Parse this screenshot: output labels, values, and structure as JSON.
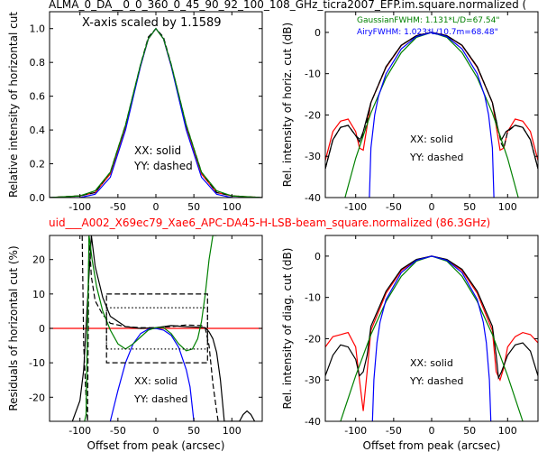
{
  "top_title": "ALMA_0_DA__0_0_360_0_45_90_92_100_108_GHz_ticra2007_EFP.im.square.normalized (",
  "mid_title": "uid___A002_X69ec79_Xae6_APC-DA45-H-LSB-beam_square.normalized (86.3GHz)",
  "colors": {
    "black": "#000000",
    "blue": "#0000ff",
    "green": "#008000",
    "red": "#ff0000"
  },
  "chart_data": [
    {
      "id": "p1",
      "type": "line",
      "xlim": [
        -140,
        140
      ],
      "ylim": [
        0,
        1.1
      ],
      "xticks": [
        -100,
        -50,
        0,
        50,
        100
      ],
      "yticks": [
        0.0,
        0.2,
        0.4,
        0.6,
        0.8,
        1.0
      ],
      "xtick_labels": [
        "-100",
        "-50",
        "0",
        "50",
        "100"
      ],
      "ytick_labels": [
        "0.0",
        "0.2",
        "0.4",
        "0.6",
        "0.8",
        "1.0"
      ],
      "xlabel": "",
      "ylabel": "Relative intensity of horizontal cut",
      "annotations": [
        "X-axis scaled by 1.1589",
        "XX: solid",
        "YY: dashed"
      ],
      "series": [
        {
          "color": "red",
          "style": "solid",
          "x": [
            -140,
            -120,
            -100,
            -80,
            -60,
            -40,
            -30,
            -20,
            -10,
            0,
            10,
            20,
            30,
            40,
            60,
            80,
            100,
            120,
            140
          ],
          "y": [
            0.0,
            0.005,
            0.01,
            0.03,
            0.14,
            0.42,
            0.6,
            0.78,
            0.94,
            1.0,
            0.94,
            0.78,
            0.6,
            0.42,
            0.14,
            0.03,
            0.01,
            0.005,
            0.0
          ]
        },
        {
          "color": "black",
          "style": "dashed",
          "x": [
            -140,
            -120,
            -100,
            -80,
            -60,
            -40,
            -30,
            -20,
            -10,
            0,
            10,
            20,
            30,
            40,
            60,
            80,
            100,
            120,
            140
          ],
          "y": [
            0.0,
            0.005,
            0.01,
            0.03,
            0.15,
            0.43,
            0.61,
            0.79,
            0.95,
            1.0,
            0.95,
            0.79,
            0.61,
            0.43,
            0.15,
            0.03,
            0.01,
            0.005,
            0.0
          ]
        },
        {
          "color": "blue",
          "style": "solid",
          "x": [
            -140,
            -100,
            -80,
            -60,
            -40,
            -30,
            -20,
            -10,
            0,
            10,
            20,
            30,
            40,
            60,
            80,
            100,
            140
          ],
          "y": [
            0.0,
            0.0,
            0.02,
            0.12,
            0.4,
            0.59,
            0.78,
            0.94,
            1.0,
            0.94,
            0.78,
            0.59,
            0.4,
            0.12,
            0.02,
            0.0,
            0.0
          ]
        },
        {
          "color": "green",
          "style": "solid",
          "x": [
            -140,
            -100,
            -80,
            -60,
            -40,
            -30,
            -20,
            -10,
            0,
            10,
            20,
            30,
            40,
            60,
            80,
            100,
            140
          ],
          "y": [
            0.0,
            0.01,
            0.04,
            0.15,
            0.43,
            0.61,
            0.79,
            0.94,
            1.0,
            0.94,
            0.79,
            0.61,
            0.43,
            0.15,
            0.04,
            0.01,
            0.0
          ]
        }
      ]
    },
    {
      "id": "p2",
      "type": "line",
      "xlim": [
        -140,
        140
      ],
      "ylim": [
        -40,
        5
      ],
      "xticks": [
        -100,
        -50,
        0,
        50,
        100
      ],
      "yticks": [
        -40,
        -30,
        -20,
        -10,
        0
      ],
      "xtick_labels": [
        "-100",
        "-50",
        "0",
        "50",
        "100"
      ],
      "ytick_labels": [
        "-40",
        "-30",
        "-20",
        "-10",
        "0"
      ],
      "xlabel": "",
      "ylabel": "Rel. intensity of horiz. cut (dB)",
      "annotations": [
        "GaussianFWHM: 1.131*L/D=67.54\"",
        "AiryFWHM: 1.023*L/10.7m=68.48\"",
        "XX: solid",
        "YY: dashed"
      ],
      "series": [
        {
          "color": "red",
          "style": "solid",
          "x": [
            -140,
            -130,
            -120,
            -110,
            -100,
            -95,
            -90,
            -80,
            -60,
            -40,
            -20,
            0,
            20,
            40,
            60,
            80,
            90,
            95,
            100,
            110,
            120,
            130,
            140
          ],
          "y": [
            -31,
            -24,
            -21.5,
            -21,
            -24,
            -28,
            -28.5,
            -17,
            -8.5,
            -3.2,
            -0.8,
            0,
            -0.8,
            -3.2,
            -8.5,
            -17,
            -28.5,
            -28,
            -24,
            -21,
            -21.5,
            -24,
            -31
          ]
        },
        {
          "color": "black",
          "style": "solid",
          "x": [
            -140,
            -130,
            -120,
            -110,
            -100,
            -95,
            -90,
            -80,
            -60,
            -40,
            -20,
            0,
            20,
            40,
            60,
            80,
            88,
            92,
            98,
            110,
            120,
            130,
            140
          ],
          "y": [
            -33,
            -26,
            -23,
            -22.5,
            -25,
            -26.5,
            -24,
            -17,
            -8.3,
            -3.1,
            -0.8,
            0,
            -0.8,
            -3.1,
            -8.3,
            -17,
            -24,
            -26,
            -24,
            -22.5,
            -23,
            -26,
            -33
          ]
        },
        {
          "color": "black",
          "style": "dashed",
          "x": [
            -140,
            -130,
            -120,
            -110,
            -100,
            -94,
            -88,
            -80,
            -60,
            -40,
            -20,
            0,
            20,
            40,
            60,
            80,
            88,
            92,
            95,
            100,
            110,
            120,
            130,
            140
          ],
          "y": [
            -33,
            -26,
            -23,
            -22.5,
            -25,
            -26,
            -24,
            -17,
            -8.3,
            -3.1,
            -0.8,
            0,
            -0.8,
            -3.1,
            -8.3,
            -17,
            -24,
            -27,
            -28,
            -24,
            -22.5,
            -23,
            -26,
            -33
          ]
        },
        {
          "color": "green",
          "style": "solid",
          "x": [
            -140,
            -120,
            -100,
            -80,
            -60,
            -40,
            -20,
            0,
            20,
            40,
            60,
            80,
            100,
            120,
            140
          ],
          "y": [
            -60,
            -44,
            -30.5,
            -19.5,
            -11,
            -4.9,
            -1.2,
            0,
            -1.2,
            -4.9,
            -11,
            -19.5,
            -30.5,
            -44,
            -60
          ]
        },
        {
          "color": "blue",
          "style": "solid",
          "x": [
            -82,
            -80,
            -75,
            -70,
            -60,
            -40,
            -20,
            0,
            20,
            40,
            60,
            70,
            75,
            80,
            82
          ],
          "y": [
            -40,
            -28,
            -20,
            -15.5,
            -10,
            -4,
            -1,
            0,
            -1,
            -4,
            -10,
            -15.5,
            -20,
            -28,
            -40
          ]
        }
      ]
    },
    {
      "id": "p3",
      "type": "line",
      "xlim": [
        -140,
        140
      ],
      "ylim": [
        -27,
        27
      ],
      "xticks": [
        -100,
        -50,
        0,
        50,
        100
      ],
      "yticks": [
        -20,
        -10,
        0,
        10,
        20
      ],
      "xtick_labels": [
        "-100",
        "-50",
        "0",
        "50",
        "100"
      ],
      "ytick_labels": [
        "-20",
        "-10",
        "0",
        "10",
        "20"
      ],
      "xlabel": "Offset from peak (arcsec)",
      "ylabel": "Residuals of horizontal cut (%)",
      "annotations": [
        "XX: solid",
        "YY: dashed"
      ],
      "series": [
        {
          "color": "red",
          "style": "solid",
          "x": [
            -140,
            140
          ],
          "y": [
            0,
            0
          ]
        },
        {
          "color": "black",
          "style": "solid",
          "x": [
            -110,
            -100,
            -95,
            -90,
            -85,
            -80,
            -70,
            -60,
            -40,
            -20,
            0,
            20,
            40,
            60,
            65,
            70,
            75,
            80,
            85,
            90,
            100,
            110,
            115,
            120,
            125,
            130
          ],
          "y": [
            -27,
            -21,
            -12,
            8,
            27,
            18,
            9,
            3.5,
            0.5,
            0,
            0.2,
            0.8,
            0.5,
            0.3,
            0.2,
            -1,
            -3,
            -7,
            -15,
            -27,
            -27,
            -27,
            -25,
            -24,
            -25,
            -27
          ]
        },
        {
          "color": "black",
          "style": "dashed",
          "x": [
            -97,
            -95,
            -92,
            -90,
            -88,
            -85,
            -80,
            -70,
            -60,
            -40,
            -20,
            0,
            20,
            40,
            60,
            65,
            70,
            75,
            80,
            82,
            85
          ],
          "y": [
            27,
            -5,
            -20,
            -27,
            27,
            15,
            8,
            4,
            1.5,
            0.5,
            0.2,
            0.2,
            0.5,
            1.0,
            0.8,
            0,
            -5,
            -16,
            -24,
            -27,
            -27
          ]
        },
        {
          "color": "blue",
          "style": "solid",
          "x": [
            -60,
            -50,
            -40,
            -30,
            -20,
            -10,
            0,
            10,
            20,
            30,
            40,
            45,
            50
          ],
          "y": [
            -27,
            -18,
            -10,
            -4.5,
            -1.5,
            -0.2,
            0,
            -0.5,
            -2,
            -5.5,
            -12,
            -17,
            -27
          ]
        },
        {
          "color": "green",
          "style": "solid",
          "x": [
            -94,
            -92,
            -88,
            -84,
            -78,
            -70,
            -60,
            -50,
            -40,
            -30,
            -20,
            -10,
            0,
            10,
            20,
            30,
            40,
            48,
            55,
            60,
            65,
            70,
            75,
            80
          ],
          "y": [
            -27,
            -25,
            27,
            20,
            12,
            5,
            -0.5,
            -4.5,
            -6,
            -4.5,
            -2.5,
            -0.5,
            0.2,
            0.2,
            -1.5,
            -4.5,
            -6.5,
            -6,
            -3,
            2,
            10,
            20,
            27,
            27
          ]
        },
        {
          "color": "black",
          "style": "dashed",
          "x": [
            -65,
            68,
            68,
            -65,
            -65
          ],
          "y": [
            10,
            10,
            -10,
            -10,
            10
          ]
        },
        {
          "color": "black",
          "style": "dotted",
          "x": [
            -65,
            68,
            68,
            -65,
            -65
          ],
          "y": [
            6,
            6,
            -6,
            -6,
            6
          ]
        }
      ]
    },
    {
      "id": "p4",
      "type": "line",
      "xlim": [
        -140,
        140
      ],
      "ylim": [
        -40,
        5
      ],
      "xticks": [
        -100,
        -50,
        0,
        50,
        100
      ],
      "yticks": [
        -40,
        -30,
        -20,
        -10,
        0
      ],
      "xtick_labels": [
        "-100",
        "-50",
        "0",
        "50",
        "100"
      ],
      "ytick_labels": [
        "-40",
        "-30",
        "-20",
        "-10",
        "0"
      ],
      "xlabel": "Offset from peak (arcsec)",
      "ylabel": "Rel. intensity of diag. cut (dB)",
      "annotations": [
        "XX: solid",
        "YY: dashed"
      ],
      "series": [
        {
          "color": "red",
          "style": "solid",
          "x": [
            -140,
            -130,
            -120,
            -110,
            -100,
            -95,
            -90,
            -85,
            -80,
            -60,
            -40,
            -20,
            0,
            20,
            40,
            60,
            80,
            85,
            90,
            95,
            100,
            110,
            120,
            130,
            140
          ],
          "y": [
            -22,
            -19.5,
            -19,
            -18.5,
            -22,
            -30,
            -37.5,
            -28,
            -18,
            -9,
            -3.5,
            -0.9,
            0,
            -0.9,
            -3.5,
            -9,
            -18,
            -28,
            -30,
            -27,
            -22,
            -19.5,
            -18.5,
            -19,
            -21
          ]
        },
        {
          "color": "black",
          "style": "solid",
          "x": [
            -140,
            -130,
            -120,
            -110,
            -100,
            -95,
            -90,
            -85,
            -80,
            -60,
            -40,
            -20,
            0,
            20,
            40,
            60,
            80,
            85,
            88,
            92,
            100,
            110,
            120,
            130,
            140
          ],
          "y": [
            -29,
            -24,
            -21.5,
            -22,
            -25,
            -29,
            -28,
            -24,
            -17,
            -8.5,
            -3.2,
            -0.8,
            0,
            -0.8,
            -3.2,
            -8.5,
            -17,
            -24,
            -29.5,
            -28,
            -24,
            -21.5,
            -21,
            -23,
            -29
          ]
        },
        {
          "color": "green",
          "style": "solid",
          "x": [
            -140,
            -120,
            -100,
            -80,
            -60,
            -40,
            -20,
            0,
            20,
            40,
            60,
            80,
            100,
            120,
            140
          ],
          "y": [
            -52,
            -40,
            -29,
            -19,
            -11,
            -4.9,
            -1.2,
            0,
            -1.2,
            -4.9,
            -11,
            -19,
            -29,
            -40,
            -52
          ]
        },
        {
          "color": "blue",
          "style": "solid",
          "x": [
            -78,
            -76,
            -72,
            -68,
            -60,
            -40,
            -20,
            0,
            20,
            40,
            60,
            68,
            72,
            76,
            78
          ],
          "y": [
            -40,
            -30,
            -21,
            -16,
            -10.5,
            -4,
            -1,
            0,
            -1,
            -4,
            -10.5,
            -16,
            -21,
            -30,
            -40
          ]
        }
      ]
    }
  ]
}
